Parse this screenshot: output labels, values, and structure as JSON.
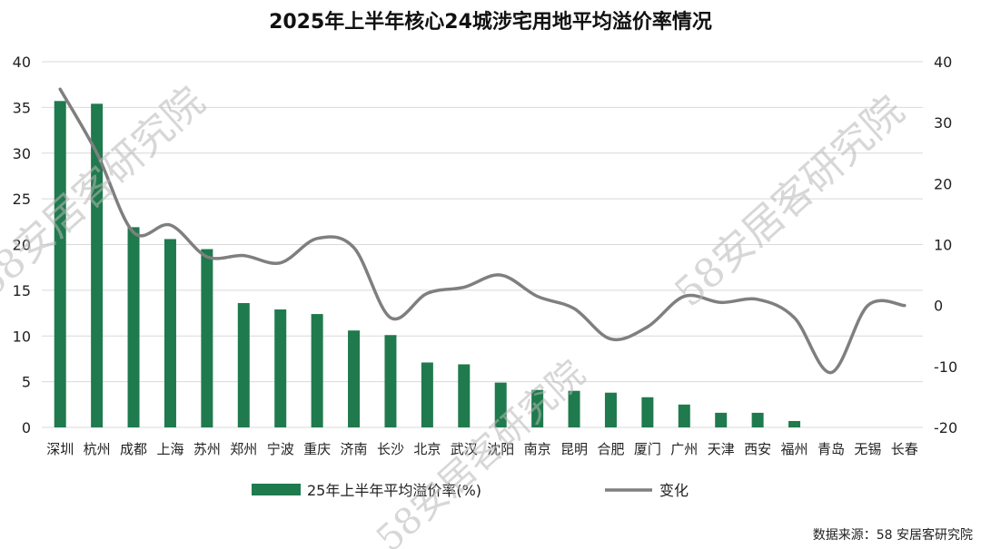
{
  "chart_data": {
    "type": "bar",
    "title": "2025年上半年核心24城涉宅用地平均溢价率情况",
    "categories": [
      "深圳",
      "杭州",
      "成都",
      "上海",
      "苏州",
      "郑州",
      "宁波",
      "重庆",
      "济南",
      "长沙",
      "北京",
      "武汉",
      "沈阳",
      "南京",
      "昆明",
      "合肥",
      "厦门",
      "广州",
      "天津",
      "西安",
      "福州",
      "青岛",
      "无锡",
      "长春"
    ],
    "series": [
      {
        "name": "25年上半年平均溢价率(%)",
        "axis": "left",
        "type": "bar",
        "color": "#1f7a4d",
        "values": [
          35.7,
          35.4,
          21.9,
          20.6,
          19.5,
          13.6,
          12.9,
          12.4,
          10.6,
          10.1,
          7.1,
          6.9,
          4.9,
          4.1,
          4.0,
          3.8,
          3.3,
          2.5,
          1.6,
          1.6,
          0.7,
          0,
          0,
          0
        ]
      },
      {
        "name": "变化",
        "axis": "right",
        "type": "line",
        "color": "#7f7f7f",
        "values": [
          35.5,
          25.0,
          12.0,
          13.2,
          8.0,
          8.2,
          7.0,
          11.0,
          9.5,
          -2.0,
          2.0,
          3.0,
          5.0,
          1.5,
          -0.5,
          -5.5,
          -3.5,
          1.5,
          0.5,
          1.0,
          -2.0,
          -11.0,
          0.0,
          0.0
        ]
      }
    ],
    "y_left": {
      "ylim": [
        0,
        40
      ],
      "ticks": [
        0,
        5,
        10,
        15,
        20,
        25,
        30,
        35,
        40
      ]
    },
    "y_right": {
      "ylim": [
        -20,
        40
      ],
      "ticks": [
        -20,
        -10,
        0,
        10,
        20,
        30,
        40
      ]
    },
    "grid": true,
    "legend": "bottom"
  },
  "source": "数据来源：58 安居客研究院",
  "watermark": "58安居客研究院"
}
